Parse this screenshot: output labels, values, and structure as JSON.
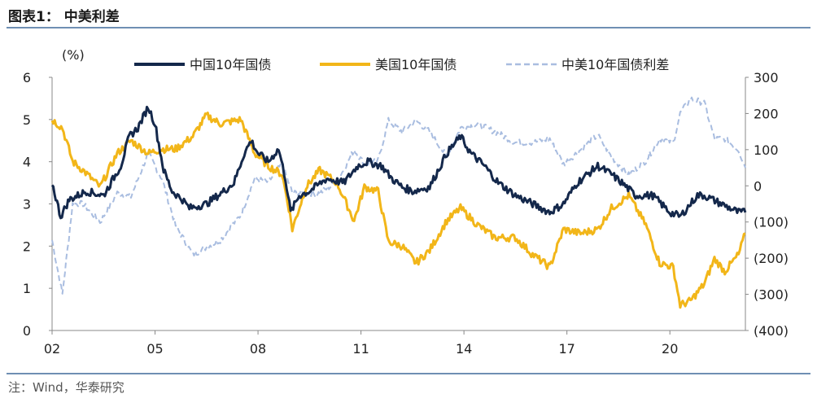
{
  "title": "图表1：  中美利差",
  "note": "注：Wind，华泰研究",
  "chart_data": {
    "type": "line",
    "left_axis_unit": "(%)",
    "xlabels": [
      "02",
      "05",
      "08",
      "11",
      "14",
      "17",
      "20"
    ],
    "x_ticks_years": [
      2002,
      2005,
      2008,
      2011,
      2014,
      2017,
      2020
    ],
    "xlim": [
      2002,
      2022.2
    ],
    "left_ylim": [
      0,
      6
    ],
    "left_ticks": [
      0,
      1,
      2,
      3,
      4,
      5,
      6
    ],
    "left_tick_labels": [
      "0",
      "1",
      "2",
      "3",
      "4",
      "5",
      "6"
    ],
    "right_ylim": [
      -400,
      300
    ],
    "right_ticks": [
      300,
      200,
      100,
      0,
      -100,
      -200,
      -300,
      -400
    ],
    "right_tick_labels": [
      "300",
      "200",
      "100",
      "0",
      "(100)",
      "(200)",
      "(300)",
      "(400)"
    ],
    "grid": false,
    "legend_position": "top",
    "series": [
      {
        "name": "中国10年国债",
        "axis": "left",
        "color": "#14284b",
        "style": "solid",
        "x": [
          2002.0,
          2002.25,
          2002.5,
          2002.75,
          2003.0,
          2003.5,
          2004.0,
          2004.25,
          2004.5,
          2004.8,
          2005.0,
          2005.25,
          2005.5,
          2005.8,
          2006.0,
          2006.5,
          2007.0,
          2007.3,
          2007.6,
          2007.8,
          2008.0,
          2008.3,
          2008.6,
          2008.8,
          2008.95,
          2009.2,
          2009.5,
          2010.0,
          2010.5,
          2010.9,
          2011.2,
          2011.6,
          2011.9,
          2012.2,
          2012.5,
          2013.0,
          2013.5,
          2013.9,
          2014.2,
          2014.6,
          2015.0,
          2015.5,
          2016.0,
          2016.5,
          2016.9,
          2017.3,
          2017.9,
          2018.3,
          2018.6,
          2019.0,
          2019.5,
          2020.0,
          2020.3,
          2020.8,
          2021.0,
          2021.5,
          2022.0,
          2022.2
        ],
        "values": [
          3.5,
          2.7,
          3.1,
          3.2,
          3.3,
          3.2,
          3.9,
          4.6,
          4.8,
          5.3,
          4.9,
          3.8,
          3.3,
          3.1,
          2.9,
          3.0,
          3.3,
          3.5,
          4.2,
          4.5,
          4.2,
          4.0,
          4.3,
          3.6,
          2.8,
          3.2,
          3.3,
          3.6,
          3.5,
          3.9,
          4.0,
          3.9,
          3.6,
          3.4,
          3.3,
          3.4,
          4.2,
          4.6,
          4.2,
          3.9,
          3.5,
          3.2,
          3.0,
          2.8,
          3.0,
          3.5,
          3.9,
          3.7,
          3.5,
          3.2,
          3.2,
          2.8,
          2.7,
          3.2,
          3.2,
          3.0,
          2.8,
          2.8
        ]
      },
      {
        "name": "美国10年国债",
        "axis": "left",
        "color": "#f2b619",
        "style": "solid",
        "x": [
          2002.0,
          2002.3,
          2002.6,
          2002.9,
          2003.4,
          2003.9,
          2004.3,
          2004.8,
          2005.2,
          2005.6,
          2006.1,
          2006.5,
          2006.9,
          2007.5,
          2007.9,
          2008.3,
          2008.7,
          2008.9,
          2009.0,
          2009.4,
          2009.8,
          2010.3,
          2010.8,
          2011.1,
          2011.5,
          2011.8,
          2012.2,
          2012.6,
          2013.0,
          2013.5,
          2013.9,
          2014.4,
          2014.9,
          2015.5,
          2016.0,
          2016.5,
          2016.9,
          2017.4,
          2017.9,
          2018.3,
          2018.8,
          2019.3,
          2019.7,
          2020.1,
          2020.3,
          2020.6,
          2021.0,
          2021.3,
          2021.6,
          2022.0,
          2022.2
        ],
        "values": [
          5.0,
          4.8,
          4.0,
          3.8,
          3.4,
          4.2,
          4.5,
          4.2,
          4.3,
          4.3,
          4.6,
          5.1,
          4.9,
          5.0,
          4.2,
          3.9,
          3.7,
          2.9,
          2.4,
          3.4,
          3.8,
          3.5,
          2.6,
          3.4,
          3.3,
          2.1,
          2.0,
          1.6,
          1.9,
          2.6,
          2.9,
          2.5,
          2.2,
          2.2,
          1.8,
          1.5,
          2.4,
          2.3,
          2.4,
          2.9,
          3.2,
          2.5,
          1.6,
          1.5,
          0.6,
          0.7,
          1.1,
          1.7,
          1.4,
          1.8,
          2.3
        ]
      },
      {
        "name": "中美10年国债利差",
        "axis": "right",
        "color": "#a9bde0",
        "style": "dashed",
        "x": [
          2002.0,
          2002.3,
          2002.6,
          2002.9,
          2003.4,
          2003.9,
          2004.3,
          2004.8,
          2005.2,
          2005.6,
          2006.1,
          2006.5,
          2006.9,
          2007.5,
          2007.9,
          2008.3,
          2008.7,
          2009.0,
          2009.4,
          2009.8,
          2010.3,
          2010.8,
          2011.1,
          2011.5,
          2011.8,
          2012.2,
          2012.6,
          2013.0,
          2013.5,
          2013.9,
          2014.4,
          2014.9,
          2015.5,
          2016.0,
          2016.5,
          2016.9,
          2017.4,
          2017.9,
          2018.3,
          2018.8,
          2019.3,
          2019.7,
          2020.1,
          2020.3,
          2020.6,
          2021.0,
          2021.3,
          2021.6,
          2022.0,
          2022.2
        ],
        "values": [
          -150,
          -300,
          -50,
          -50,
          -100,
          -20,
          -30,
          90,
          20,
          -110,
          -190,
          -170,
          -150,
          -80,
          20,
          10,
          60,
          -20,
          -20,
          -20,
          10,
          100,
          60,
          70,
          180,
          150,
          180,
          150,
          80,
          160,
          170,
          150,
          120,
          120,
          130,
          60,
          100,
          140,
          80,
          30,
          70,
          130,
          120,
          200,
          240,
          230,
          130,
          130,
          100,
          50
        ]
      }
    ]
  }
}
